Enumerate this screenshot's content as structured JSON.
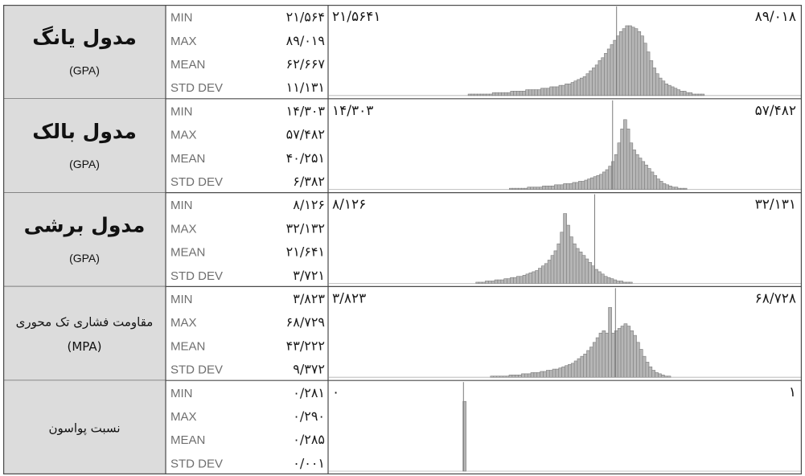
{
  "chart_data": [
    {
      "type": "bar",
      "name_line1": "مدول یانگ",
      "unit": "(GPA)",
      "stats": {
        "MIN": "۲۱/۵۶۴",
        "MAX": "۸۹/۰۱۹",
        "MEAN": "۶۲/۶۶۷",
        "STD DEV": "۱۱/۱۳۱"
      },
      "x_range_labels": [
        "۲۱/۵۶۴۱",
        "۸۹/۰۱۸"
      ],
      "x_range": [
        21.5641,
        89.018
      ],
      "mean": 62.667,
      "frequencies": [
        0,
        0,
        0,
        0,
        0,
        0,
        0,
        0,
        0,
        0,
        0,
        0,
        0,
        0,
        0,
        0,
        0,
        0,
        0,
        0,
        0,
        0,
        0,
        0,
        0,
        0,
        0,
        0,
        0,
        0,
        0,
        0,
        0,
        0,
        0,
        0,
        0,
        0,
        0,
        0,
        0,
        0,
        0,
        0,
        0,
        0,
        1,
        1,
        1,
        1,
        1,
        1,
        1,
        1,
        2,
        2,
        2,
        2,
        2,
        2,
        3,
        3,
        3,
        3,
        3,
        4,
        4,
        4,
        4,
        4,
        5,
        5,
        5,
        6,
        6,
        6,
        7,
        7,
        8,
        8,
        9,
        10,
        11,
        12,
        13,
        15,
        17,
        19,
        21,
        24,
        26,
        29,
        32,
        35,
        38,
        41,
        44,
        46,
        48,
        48,
        47,
        46,
        44,
        41,
        36,
        30,
        24,
        19,
        15,
        12,
        10,
        8,
        7,
        6,
        5,
        4,
        3,
        3,
        2,
        2,
        1,
        1,
        1,
        1,
        0,
        0,
        0,
        0,
        0,
        0,
        0,
        0,
        0,
        0,
        0,
        0,
        0,
        0,
        0,
        0,
        0,
        0,
        0,
        0,
        0,
        0,
        0,
        0,
        0,
        0,
        0,
        0,
        0,
        0,
        0,
        0
      ]
    },
    {
      "type": "bar",
      "name_line1": "مدول بالک",
      "unit": "(GPA)",
      "stats": {
        "MIN": "۱۴/۳۰۳",
        "MAX": "۵۷/۴۸۲",
        "MEAN": "۴۰/۲۵۱",
        "STD DEV": "۶/۳۸۲"
      },
      "x_range_labels": [
        "۱۴/۳۰۳",
        "۵۷/۴۸۲"
      ],
      "x_range": [
        14.303,
        57.482
      ],
      "mean": 40.251,
      "frequencies": [
        0,
        0,
        0,
        0,
        0,
        0,
        0,
        0,
        0,
        0,
        0,
        0,
        0,
        0,
        0,
        0,
        0,
        0,
        0,
        0,
        0,
        0,
        0,
        0,
        0,
        0,
        0,
        0,
        0,
        0,
        0,
        0,
        0,
        0,
        0,
        0,
        0,
        0,
        0,
        0,
        0,
        0,
        0,
        0,
        0,
        0,
        0,
        0,
        0,
        0,
        0,
        0,
        0,
        0,
        0,
        0,
        0,
        0,
        0,
        0,
        1,
        1,
        1,
        1,
        1,
        1,
        2,
        2,
        2,
        2,
        2,
        3,
        3,
        3,
        3,
        4,
        4,
        4,
        5,
        5,
        5,
        6,
        6,
        7,
        7,
        8,
        9,
        10,
        11,
        12,
        13,
        15,
        17,
        20,
        24,
        30,
        40,
        52,
        60,
        52,
        40,
        34,
        30,
        27,
        24,
        21,
        18,
        15,
        12,
        9,
        7,
        5,
        4,
        3,
        2,
        2,
        1,
        1,
        1,
        0,
        0,
        0,
        0,
        0,
        0,
        0,
        0,
        0,
        0,
        0,
        0,
        0,
        0,
        0,
        0,
        0,
        0,
        0,
        0,
        0,
        0,
        0,
        0,
        0,
        0,
        0,
        0,
        0,
        0,
        0,
        0,
        0,
        0,
        0,
        0,
        0,
        0
      ]
    },
    {
      "type": "bar",
      "name_line1": "مدول برشی",
      "unit": "(GPA)",
      "stats": {
        "MIN": "۸/۱۲۶",
        "MAX": "۳۲/۱۳۲",
        "MEAN": "۲۱/۶۴۱",
        "STD DEV": "۳/۷۲۱"
      },
      "x_range_labels": [
        "۸/۱۲۶",
        "۳۲/۱۳۱"
      ],
      "x_range": [
        8.126,
        32.131
      ],
      "mean": 21.641,
      "frequencies": [
        0,
        0,
        0,
        0,
        0,
        0,
        0,
        0,
        0,
        0,
        0,
        0,
        0,
        0,
        0,
        0,
        0,
        0,
        0,
        0,
        0,
        0,
        0,
        0,
        0,
        0,
        0,
        0,
        0,
        0,
        0,
        0,
        0,
        0,
        0,
        0,
        0,
        0,
        0,
        0,
        0,
        0,
        0,
        0,
        0,
        0,
        0,
        1,
        1,
        1,
        2,
        2,
        2,
        3,
        3,
        3,
        4,
        4,
        5,
        5,
        6,
        6,
        7,
        8,
        9,
        10,
        11,
        13,
        15,
        17,
        20,
        24,
        28,
        34,
        44,
        60,
        50,
        40,
        34,
        30,
        27,
        24,
        21,
        18,
        15,
        12,
        10,
        8,
        6,
        5,
        4,
        3,
        2,
        2,
        1,
        1,
        1,
        0,
        0,
        0,
        0,
        0,
        0,
        0,
        0,
        0,
        0,
        0,
        0,
        0,
        0,
        0,
        0,
        0,
        0,
        0,
        0,
        0,
        0,
        0,
        0,
        0,
        0,
        0,
        0,
        0,
        0,
        0,
        0,
        0,
        0,
        0,
        0,
        0,
        0,
        0,
        0,
        0,
        0,
        0,
        0,
        0,
        0,
        0,
        0,
        0,
        0,
        0,
        0,
        0,
        0
      ]
    },
    {
      "type": "bar",
      "name_line1": "مقاومت فشاری تک محوری",
      "unit": "(MPA)",
      "stats": {
        "MIN": "۳/۸۲۳",
        "MAX": "۶۸/۷۲۹",
        "MEAN": "۴۳/۲۲۲",
        "STD DEV": "۹/۳۷۲"
      },
      "x_range_labels": [
        "۳/۸۲۳",
        "۶۸/۷۲۸"
      ],
      "x_range": [
        3.823,
        68.728
      ],
      "mean": 43.222,
      "frequencies": [
        0,
        0,
        0,
        0,
        0,
        0,
        0,
        0,
        0,
        0,
        0,
        0,
        0,
        0,
        0,
        0,
        0,
        0,
        0,
        0,
        0,
        0,
        0,
        0,
        0,
        0,
        0,
        0,
        0,
        0,
        0,
        0,
        0,
        0,
        0,
        0,
        0,
        0,
        0,
        0,
        0,
        0,
        0,
        0,
        0,
        0,
        0,
        0,
        0,
        0,
        0,
        0,
        1,
        1,
        1,
        1,
        1,
        1,
        2,
        2,
        2,
        2,
        3,
        3,
        3,
        4,
        4,
        4,
        5,
        5,
        6,
        6,
        7,
        7,
        8,
        9,
        10,
        11,
        12,
        14,
        16,
        18,
        20,
        23,
        26,
        30,
        34,
        38,
        40,
        38,
        60,
        38,
        40,
        42,
        44,
        46,
        44,
        40,
        36,
        30,
        24,
        18,
        13,
        9,
        6,
        4,
        3,
        2,
        1,
        1,
        0,
        0,
        0,
        0,
        0,
        0,
        0,
        0,
        0,
        0,
        0,
        0,
        0,
        0,
        0,
        0,
        0,
        0,
        0,
        0,
        0,
        0,
        0,
        0,
        0,
        0,
        0,
        0,
        0,
        0,
        0,
        0,
        0,
        0,
        0,
        0,
        0,
        0,
        0,
        0,
        0,
        0
      ]
    },
    {
      "type": "bar",
      "name_line1": "نسبت پواسون",
      "unit": "",
      "stats": {
        "MIN": "۰/۲۸۱",
        "MAX": "۰/۲۹۰",
        "MEAN": "۰/۲۸۵",
        "STD DEV": "۰/۰۰۱"
      },
      "x_range_labels": [
        "۰",
        "۱"
      ],
      "x_range": [
        0,
        1
      ],
      "mean": 0.285,
      "frequencies": [
        0,
        0,
        0,
        0,
        0,
        0,
        0,
        0,
        0,
        0,
        0,
        0,
        0,
        0,
        0,
        0,
        0,
        0,
        0,
        0,
        0,
        0,
        0,
        0,
        0,
        0,
        0,
        0,
        0,
        0,
        0,
        0,
        0,
        0,
        0,
        0,
        0,
        0,
        0,
        0,
        0,
        0,
        0,
        0,
        60,
        0,
        0,
        0,
        0,
        0,
        0,
        0,
        0,
        0,
        0,
        0,
        0,
        0,
        0,
        0,
        0,
        0,
        0,
        0,
        0,
        0,
        0,
        0,
        0,
        0,
        0,
        0,
        0,
        0,
        0,
        0,
        0,
        0,
        0,
        0,
        0,
        0,
        0,
        0,
        0,
        0,
        0,
        0,
        0,
        0,
        0,
        0,
        0,
        0,
        0,
        0,
        0,
        0,
        0,
        0,
        0,
        0,
        0,
        0,
        0,
        0,
        0,
        0,
        0,
        0,
        0,
        0,
        0,
        0,
        0,
        0,
        0,
        0,
        0,
        0,
        0,
        0,
        0,
        0,
        0,
        0,
        0,
        0,
        0,
        0,
        0,
        0,
        0,
        0,
        0,
        0,
        0,
        0,
        0,
        0,
        0,
        0,
        0,
        0,
        0,
        0,
        0,
        0,
        0,
        0,
        0,
        0,
        0,
        0,
        0
      ]
    }
  ],
  "stat_labels": [
    "MIN",
    "MAX",
    "MEAN",
    "STD DEV"
  ],
  "colors": {
    "bar_fill": "#b6b6b6",
    "bar_stroke": "#7a7a7a",
    "label_bg": "#dcdcdc",
    "border": "#4a4a4a"
  }
}
